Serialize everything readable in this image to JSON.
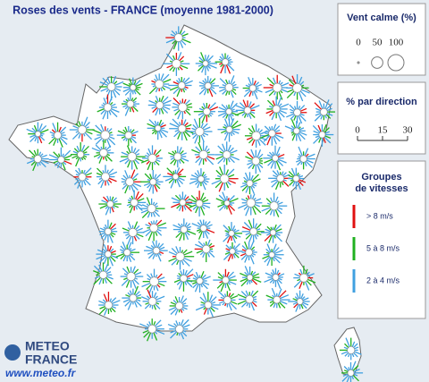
{
  "title": "Roses des vents - FRANCE (moyenne 1981-2000)",
  "legend": {
    "calm": {
      "title": "Vent calme (%)",
      "values": [
        0,
        50,
        100
      ]
    },
    "direction": {
      "title": "% par direction",
      "ticks": [
        0,
        15,
        30
      ]
    },
    "speed": {
      "title_lines": [
        "Groupes",
        "de vitesses"
      ],
      "groups": [
        {
          "label": "> 8 m/s",
          "color": "#e01010"
        },
        {
          "label": "5 à 8 m/s",
          "color": "#20b020"
        },
        {
          "label": "2 à 4 m/s",
          "color": "#40a0e0"
        }
      ]
    }
  },
  "logo": {
    "line1": "METEO",
    "line2": "FRANCE",
    "url": "www.meteo.fr"
  }
}
